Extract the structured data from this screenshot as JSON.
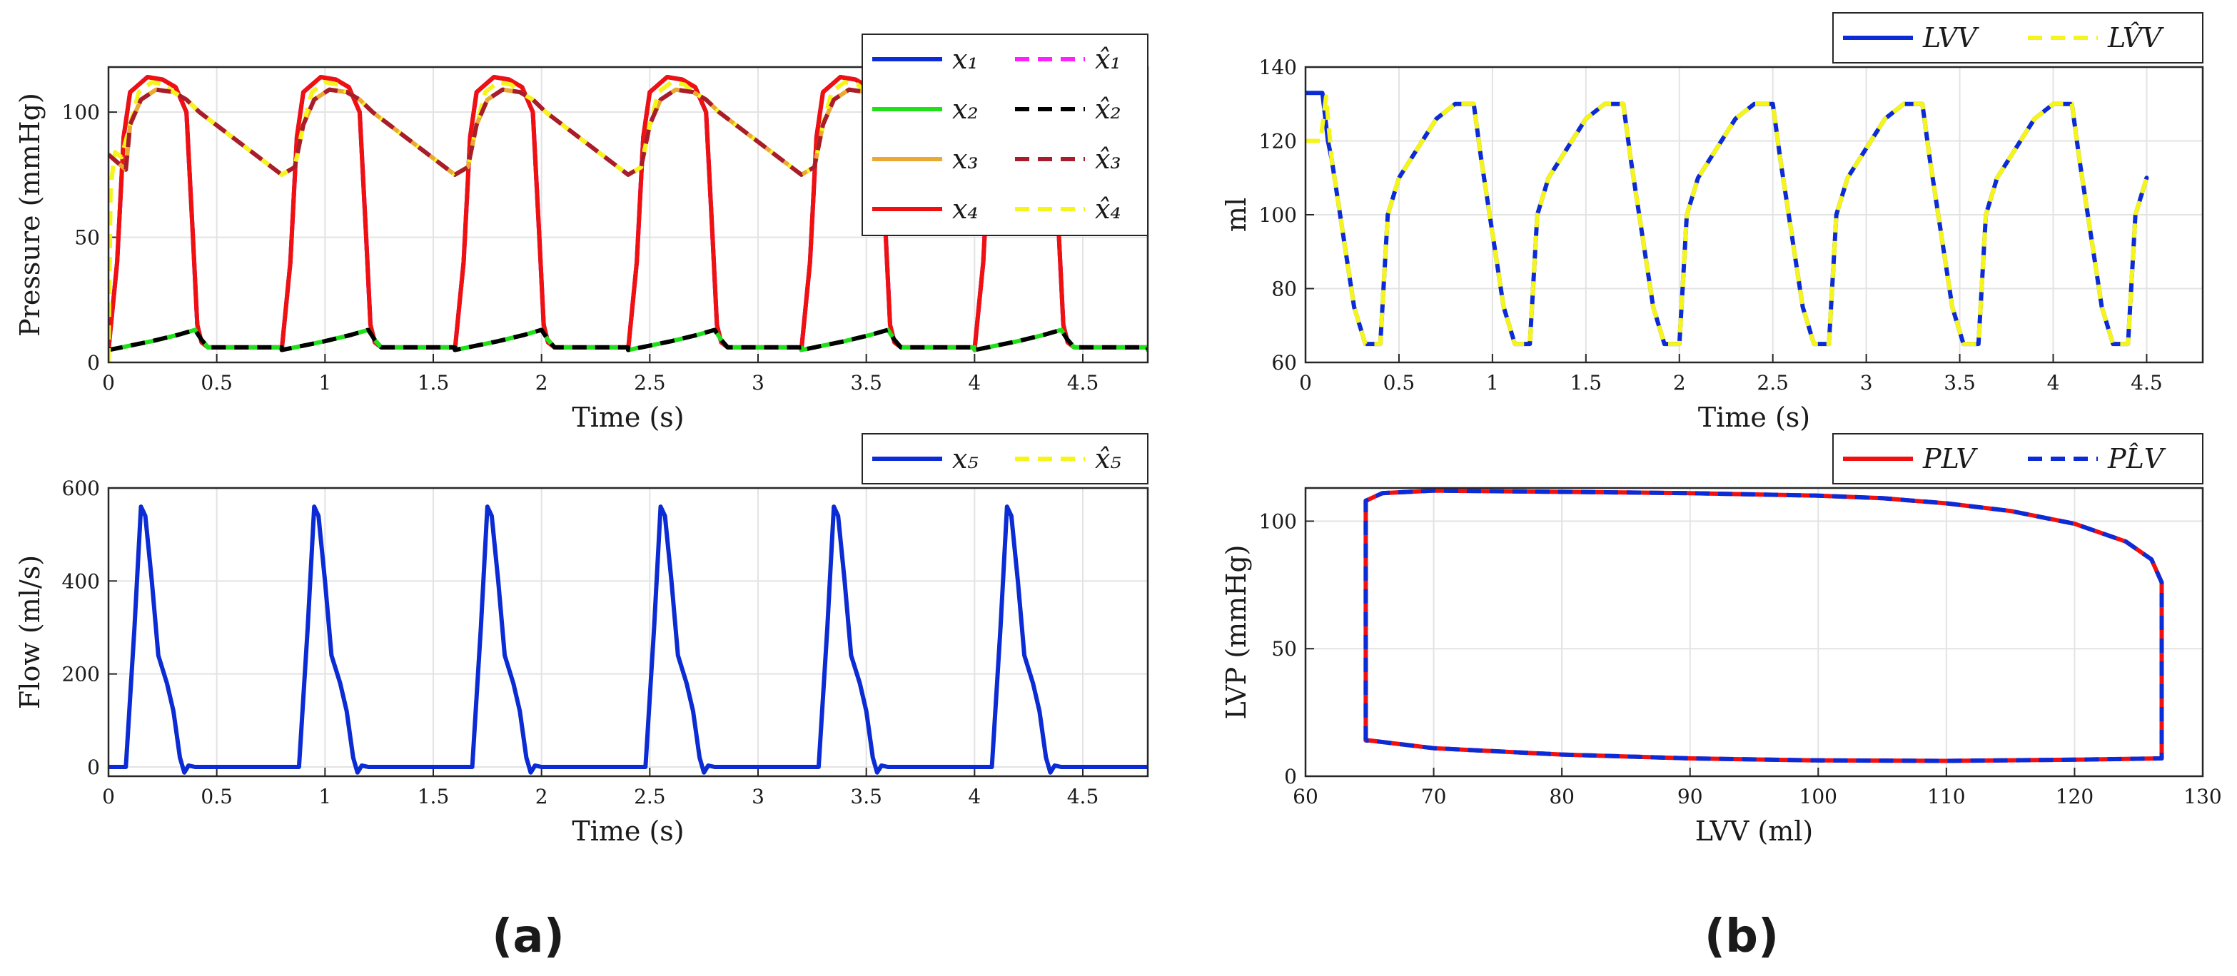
{
  "colors": {
    "blue": "#0b2bd6",
    "green": "#20e01a",
    "orange": "#eaa932",
    "red": "#f01010",
    "magenta": "#ff20ff",
    "black": "#000000",
    "darkred": "#a81c2c",
    "yellow": "#f5f51c"
  },
  "panels": {
    "a": "(a)",
    "b": "(b)"
  },
  "chart_data": [
    {
      "id": "pressure",
      "type": "line",
      "xlabel": "Time (s)",
      "ylabel": "Pressure (mmHg)",
      "xlim": [
        0,
        4.8
      ],
      "ylim": [
        0,
        118
      ],
      "xticks": [
        0,
        0.5,
        1,
        1.5,
        2,
        2.5,
        3,
        3.5,
        4,
        4.5
      ],
      "xtick_labels": [
        "0",
        "0.5",
        "1",
        "1.5",
        "2",
        "2.5",
        "3",
        "3.5",
        "4",
        "4.5"
      ],
      "yticks": [
        0,
        50,
        100
      ],
      "ytick_labels": [
        "0",
        "50",
        "100"
      ],
      "legend": {
        "location": "top-right",
        "columns": 2
      },
      "series": [
        {
          "name": "x1",
          "label": "x₁",
          "color": "#0b2bd6",
          "dash": false,
          "trace": "lvp"
        },
        {
          "name": "x2",
          "label": "x₂",
          "color": "#20e01a",
          "dash": false,
          "trace": "x2"
        },
        {
          "name": "x3",
          "label": "x₃",
          "color": "#eaa932",
          "dash": false,
          "trace": "x3"
        },
        {
          "name": "x4",
          "label": "x₄",
          "color": "#f01010",
          "dash": false,
          "trace": "lvp"
        },
        {
          "name": "x1_hat",
          "label": "x̂₁",
          "color": "#ff20ff",
          "dash": true,
          "trace": "lvp"
        },
        {
          "name": "x2_hat",
          "label": "x̂₂",
          "color": "#000000",
          "dash": true,
          "trace": "x2"
        },
        {
          "name": "x3_hat",
          "label": "x̂₃",
          "color": "#a81c2c",
          "dash": true,
          "trace": "x3"
        },
        {
          "name": "x4_hat",
          "label": "x̂₄",
          "color": "#f5f51c",
          "dash": true,
          "trace": "x4"
        }
      ],
      "legend_order": [
        0,
        4,
        1,
        5,
        2,
        6,
        3,
        7
      ],
      "draw_order": [
        0,
        4,
        3,
        1,
        5,
        2,
        7,
        6
      ],
      "traces": {
        "lvp": {
          "period": 0.8,
          "points": [
            [
              0,
              5
            ],
            [
              0.04,
              40
            ],
            [
              0.07,
              90
            ],
            [
              0.1,
              108
            ],
            [
              0.18,
              114
            ],
            [
              0.25,
              113
            ],
            [
              0.31,
              110
            ],
            [
              0.36,
              100
            ],
            [
              0.39,
              50
            ],
            [
              0.41,
              15
            ],
            [
              0.43,
              8
            ],
            [
              0.46,
              6
            ],
            [
              0.8,
              6
            ]
          ]
        },
        "x2": {
          "period": 0.8,
          "points": [
            [
              0,
              5
            ],
            [
              0.06,
              6
            ],
            [
              0.2,
              8.5
            ],
            [
              0.32,
              11
            ],
            [
              0.4,
              13
            ],
            [
              0.43,
              9
            ],
            [
              0.46,
              6
            ],
            [
              0.54,
              6
            ],
            [
              0.8,
              6
            ]
          ]
        },
        "x3": {
          "period": 0.8,
          "points": [
            [
              0,
              75
            ],
            [
              0.06,
              78
            ],
            [
              0.1,
              95
            ],
            [
              0.15,
              105
            ],
            [
              0.22,
              109
            ],
            [
              0.3,
              108
            ],
            [
              0.36,
              105
            ],
            [
              0.42,
              100
            ],
            [
              0.8,
              75
            ]
          ],
          "start": [
            [
              0,
              83
            ],
            [
              0.04,
              80
            ],
            [
              0.08,
              77
            ]
          ]
        },
        "x4": {
          "period": 0.8,
          "points": [
            [
              0,
              75
            ],
            [
              0.06,
              78
            ],
            [
              0.1,
              95
            ],
            [
              0.14,
              108
            ],
            [
              0.2,
              112
            ],
            [
              0.26,
              111
            ],
            [
              0.3,
              108
            ],
            [
              0.36,
              105
            ],
            [
              0.42,
              100
            ],
            [
              0.8,
              75
            ]
          ],
          "start": [
            [
              0,
              0
            ],
            [
              0.01,
              70
            ],
            [
              0.03,
              84
            ],
            [
              0.06,
              82
            ],
            [
              0.1,
              95
            ]
          ]
        }
      }
    },
    {
      "id": "flow",
      "type": "line",
      "xlabel": "Time (s)",
      "ylabel": "Flow (ml/s)",
      "xlim": [
        0,
        4.8
      ],
      "ylim": [
        -20,
        600
      ],
      "xticks": [
        0,
        0.5,
        1,
        1.5,
        2,
        2.5,
        3,
        3.5,
        4,
        4.5
      ],
      "xtick_labels": [
        "0",
        "0.5",
        "1",
        "1.5",
        "2",
        "2.5",
        "3",
        "3.5",
        "4",
        "4.5"
      ],
      "yticks": [
        0,
        200,
        400,
        600
      ],
      "ytick_labels": [
        "0",
        "200",
        "400",
        "600"
      ],
      "legend": {
        "location": "top-right",
        "columns": 2
      },
      "series": [
        {
          "name": "x5",
          "label": "x₅",
          "color": "#0b2bd6",
          "dash": false,
          "trace": "flow"
        },
        {
          "name": "x5_hat",
          "label": "x̂₅",
          "color": "#f5f51c",
          "dash": true,
          "trace": "flow"
        }
      ],
      "legend_order": [
        0,
        1
      ],
      "draw_order": [
        1,
        0
      ],
      "traces": {
        "flow": {
          "period": 0.8,
          "points": [
            [
              0,
              0
            ],
            [
              0.08,
              0
            ],
            [
              0.12,
              300
            ],
            [
              0.15,
              560
            ],
            [
              0.17,
              540
            ],
            [
              0.2,
              400
            ],
            [
              0.23,
              240
            ],
            [
              0.27,
              180
            ],
            [
              0.3,
              120
            ],
            [
              0.33,
              20
            ],
            [
              0.35,
              -12
            ],
            [
              0.37,
              3
            ],
            [
              0.4,
              0
            ],
            [
              0.8,
              0
            ]
          ]
        }
      }
    },
    {
      "id": "volume",
      "type": "line",
      "xlabel": "Time (s)",
      "ylabel": "ml",
      "xlim": [
        0,
        4.8
      ],
      "ylim": [
        60,
        140
      ],
      "xticks": [
        0,
        0.5,
        1,
        1.5,
        2,
        2.5,
        3,
        3.5,
        4,
        4.5
      ],
      "xtick_labels": [
        "0",
        "0.5",
        "1",
        "1.5",
        "2",
        "2.5",
        "3",
        "3.5",
        "4",
        "4.5"
      ],
      "yticks": [
        60,
        80,
        100,
        120,
        140
      ],
      "ytick_labels": [
        "60",
        "80",
        "100",
        "120",
        "140"
      ],
      "legend": {
        "location": "top-right",
        "columns": 2
      },
      "series": [
        {
          "name": "LVV",
          "label": "LVV",
          "color": "#0b2bd6",
          "dash": false,
          "trace": "lvv"
        },
        {
          "name": "LVV_hat",
          "label": "LV̂V",
          "color": "#f5f51c",
          "dash": true,
          "trace": "lvv_hat"
        }
      ],
      "legend_order": [
        0,
        1
      ],
      "draw_order": [
        0,
        1
      ],
      "xmax_data": 4.5,
      "traces": {
        "lvv": {
          "period": 0.8,
          "points": [
            [
              0,
              130
            ],
            [
              0.1,
              130
            ],
            [
              0.14,
              115
            ],
            [
              0.2,
              95
            ],
            [
              0.26,
              75
            ],
            [
              0.32,
              65
            ],
            [
              0.38,
              65
            ],
            [
              0.4,
              65
            ],
            [
              0.44,
              100
            ],
            [
              0.5,
              110
            ],
            [
              0.6,
              118
            ],
            [
              0.7,
              126
            ],
            [
              0.8,
              130
            ]
          ],
          "start": [
            [
              0,
              133
            ],
            [
              0.09,
              133
            ],
            [
              0.12,
              120
            ]
          ]
        },
        "lvv_hat": {
          "period": 0.8,
          "points": [
            [
              0,
              130
            ],
            [
              0.1,
              130
            ],
            [
              0.14,
              115
            ],
            [
              0.2,
              95
            ],
            [
              0.26,
              75
            ],
            [
              0.32,
              65
            ],
            [
              0.38,
              65
            ],
            [
              0.4,
              65
            ],
            [
              0.44,
              100
            ],
            [
              0.5,
              110
            ],
            [
              0.6,
              118
            ],
            [
              0.7,
              126
            ],
            [
              0.8,
              130
            ]
          ],
          "start": [
            [
              0,
              120
            ],
            [
              0.08,
              120
            ],
            [
              0.11,
              132
            ],
            [
              0.14,
              115
            ]
          ]
        }
      }
    },
    {
      "id": "pv_loop",
      "type": "line",
      "xlabel": "LVV (ml)",
      "ylabel": "LVP (mmHg)",
      "xlim": [
        60,
        130
      ],
      "ylim": [
        0,
        113
      ],
      "xticks": [
        60,
        70,
        80,
        90,
        100,
        110,
        120,
        130
      ],
      "xtick_labels": [
        "60",
        "70",
        "80",
        "90",
        "100",
        "110",
        "120",
        "130"
      ],
      "yticks": [
        0,
        50,
        100
      ],
      "ytick_labels": [
        "0",
        "50",
        "100"
      ],
      "legend": {
        "location": "top-right",
        "columns": 2
      },
      "series": [
        {
          "name": "PLV",
          "label": "PLV",
          "color": "#f01010",
          "dash": false,
          "trace": "loop"
        },
        {
          "name": "PLV_hat",
          "label": "PL̂V",
          "color": "#0b2bd6",
          "dash": true,
          "trace": "loop"
        }
      ],
      "legend_order": [
        0,
        1
      ],
      "draw_order": [
        0,
        1
      ],
      "traces": {
        "loop": {
          "closed": true,
          "points": [
            [
              64.7,
              14
            ],
            [
              64.7,
              108
            ],
            [
              66,
              111
            ],
            [
              70,
              112
            ],
            [
              80,
              111.5
            ],
            [
              90,
              111
            ],
            [
              100,
              110
            ],
            [
              105,
              109
            ],
            [
              110,
              107
            ],
            [
              115,
              104
            ],
            [
              120,
              99
            ],
            [
              124,
              92
            ],
            [
              126,
              85
            ],
            [
              126.8,
              76
            ],
            [
              126.8,
              7
            ],
            [
              120,
              6.5
            ],
            [
              110,
              6
            ],
            [
              100,
              6.2
            ],
            [
              90,
              7
            ],
            [
              80,
              8.5
            ],
            [
              70,
              11
            ],
            [
              65,
              14
            ]
          ]
        }
      }
    }
  ]
}
